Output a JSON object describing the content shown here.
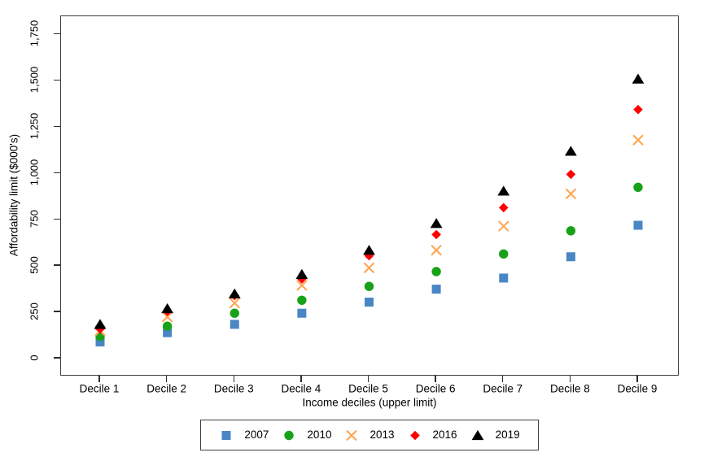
{
  "figure": {
    "background": "#ffffff",
    "frame_color": "#3f3f3f"
  },
  "chart_data": {
    "type": "scatter",
    "xlabel": "Income deciles (upper limit)",
    "ylabel": "Affordability limit ($000's)",
    "categories": [
      "Decile 1",
      "Decile 2",
      "Decile 3",
      "Decile 4",
      "Decile 5",
      "Decile 6",
      "Decile 7",
      "Decile 8",
      "Decile 9"
    ],
    "y_ticks": [
      0,
      250,
      500,
      750,
      1000,
      1250,
      1500,
      1750
    ],
    "y_tick_labels": [
      "0",
      "250",
      "500",
      "750",
      "1,000",
      "1,250",
      "1,500",
      "1,750"
    ],
    "ylim": [
      -95,
      1850
    ],
    "grid": false,
    "legend_position": "bottom",
    "series": [
      {
        "name": "2007",
        "marker": "square",
        "color": "#4a86c5",
        "values": [
          90,
          140,
          185,
          245,
          305,
          375,
          435,
          550,
          720
        ]
      },
      {
        "name": "2010",
        "marker": "circle",
        "color": "#17a217",
        "values": [
          120,
          175,
          245,
          315,
          390,
          470,
          565,
          690,
          925
        ]
      },
      {
        "name": "2013",
        "marker": "x",
        "color": "#ffa552",
        "values": [
          150,
          225,
          300,
          395,
          490,
          585,
          715,
          890,
          1180
        ]
      },
      {
        "name": "2016",
        "marker": "diamond",
        "color": "#fd0000",
        "values": [
          160,
          255,
          340,
          430,
          555,
          670,
          815,
          995,
          1345
        ]
      },
      {
        "name": "2019",
        "marker": "triangle",
        "color": "#000000",
        "values": [
          185,
          270,
          350,
          455,
          585,
          730,
          905,
          1120,
          1510
        ]
      }
    ]
  }
}
